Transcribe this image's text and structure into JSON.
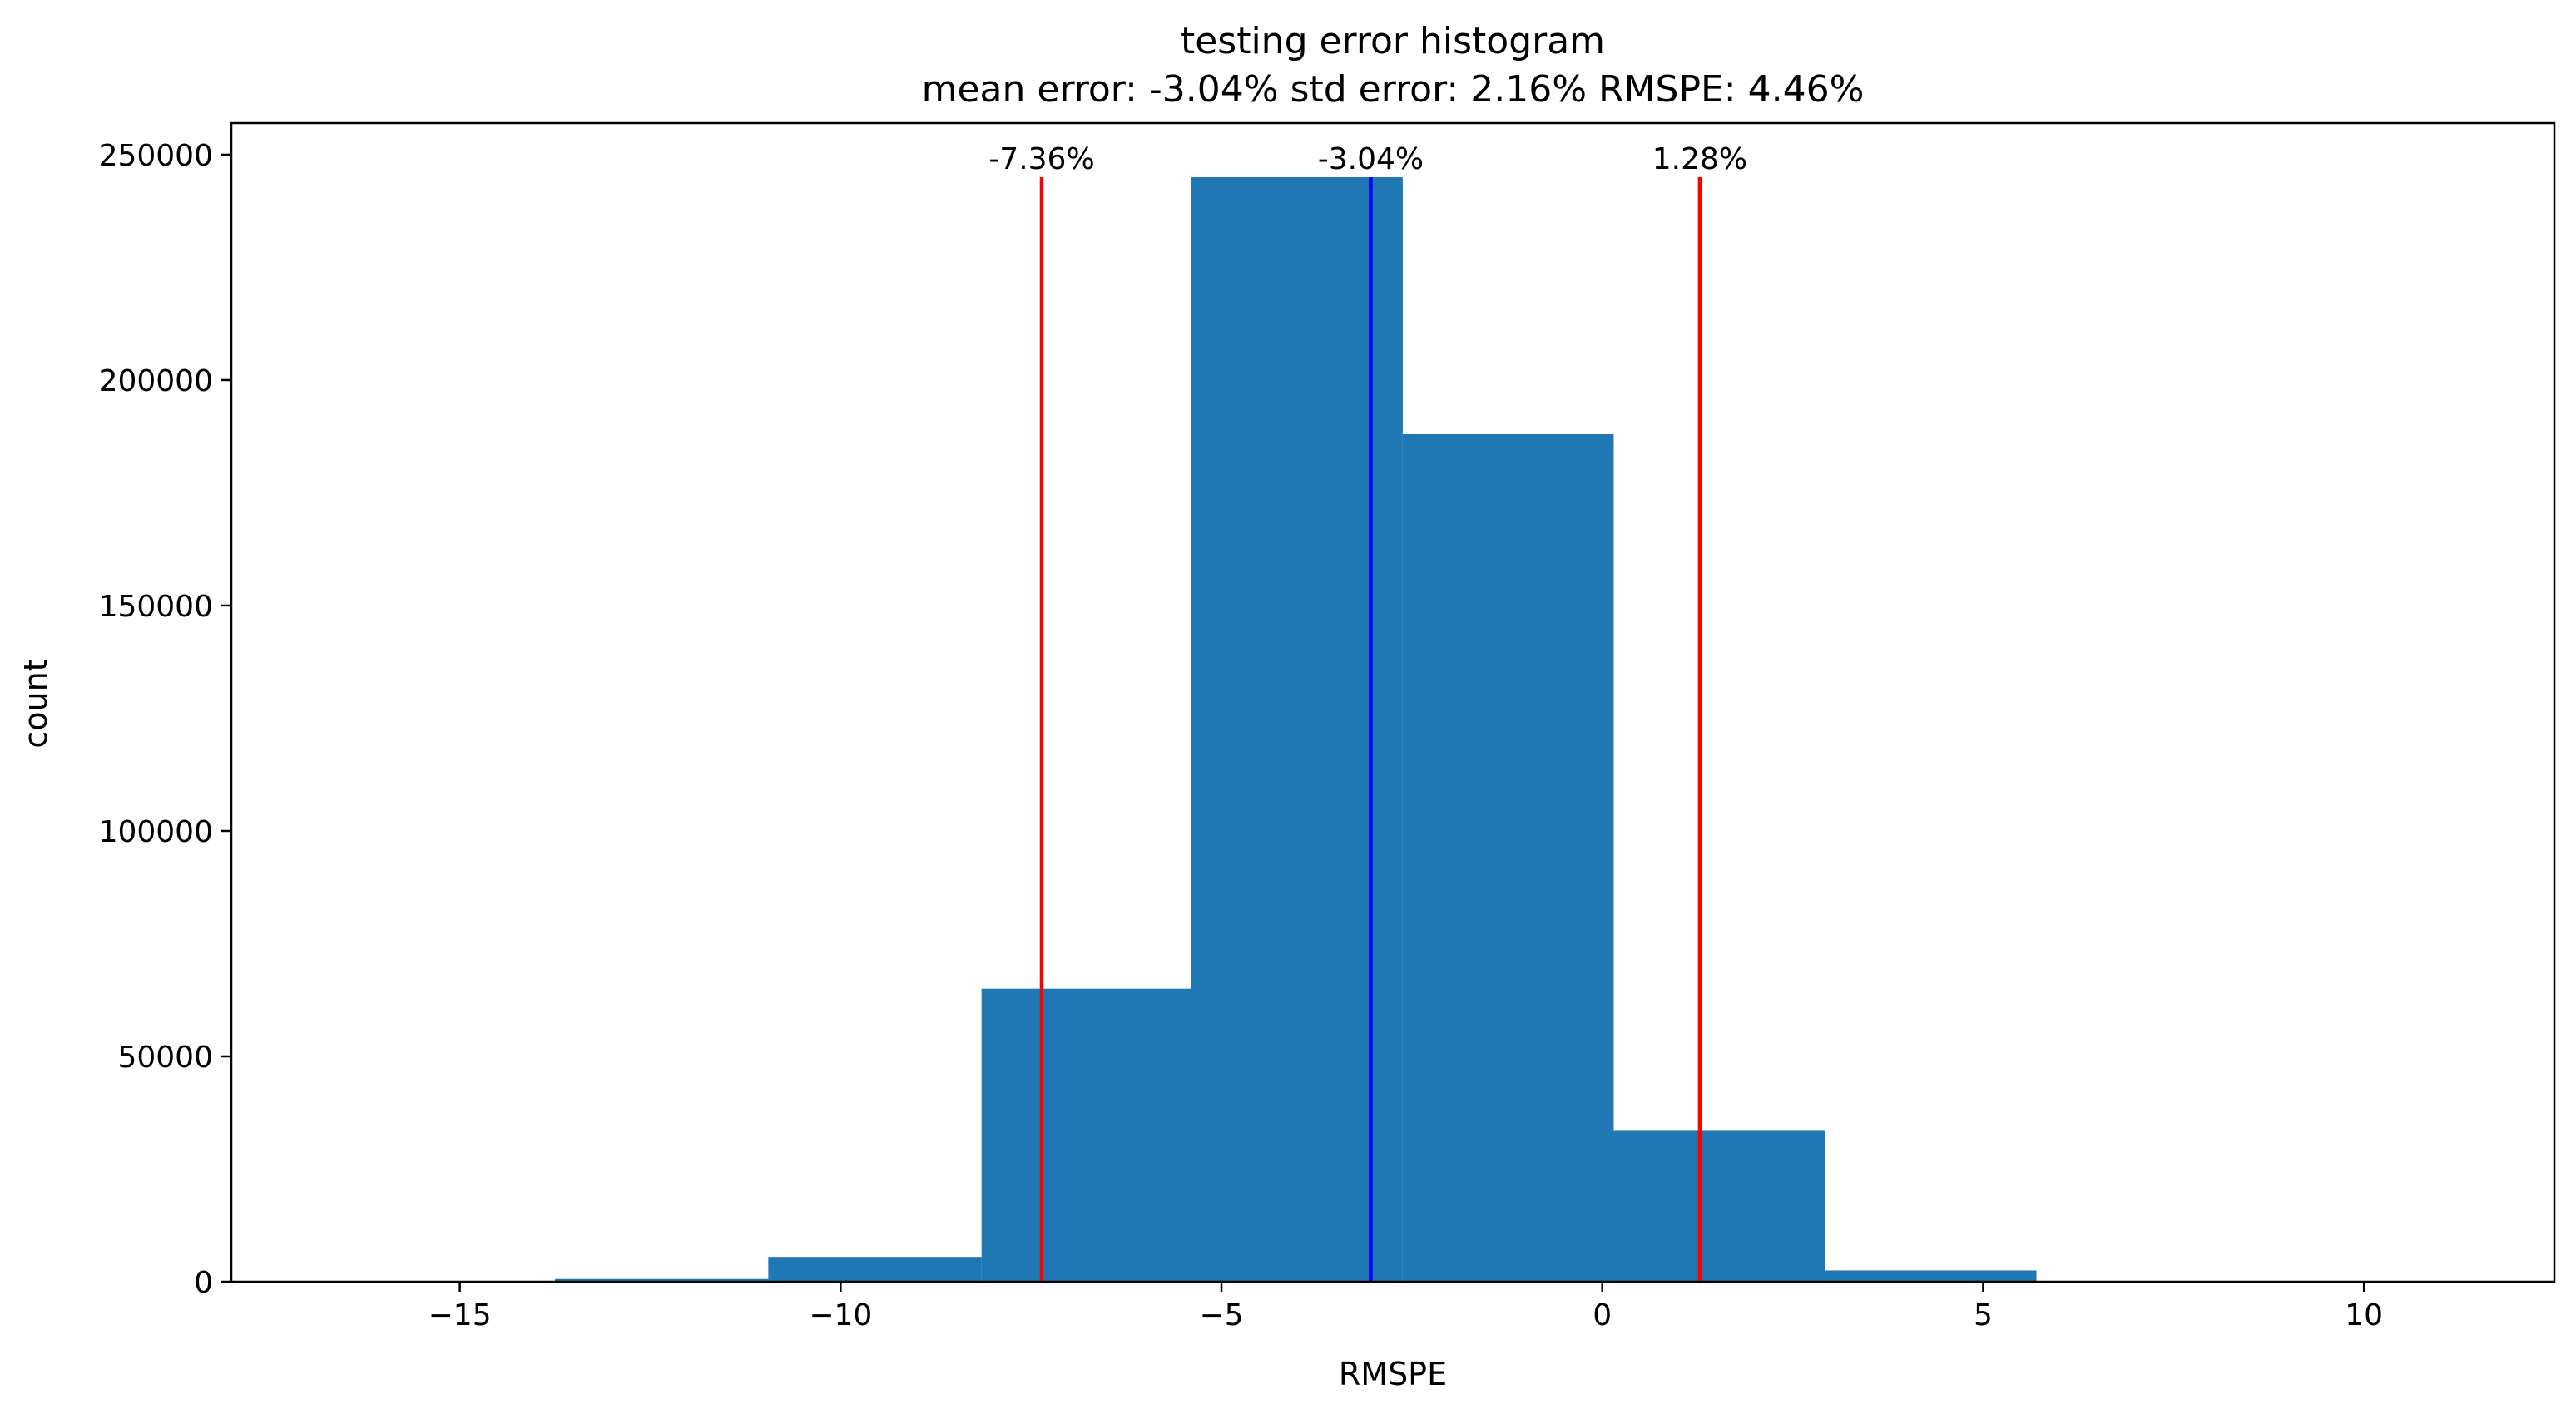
{
  "chart_data": {
    "type": "bar",
    "title": "testing error histogram",
    "subtitle": "mean error: -3.04% std error: 2.16% RMSPE: 4.46%",
    "xlabel": "RMSPE",
    "ylabel": "count",
    "xlim": [
      -18.0,
      12.5
    ],
    "ylim": [
      0,
      257000
    ],
    "xticks": [
      -15,
      -10,
      -5,
      0,
      5,
      10
    ],
    "xtick_labels": [
      "−15",
      "−10",
      "−5",
      "0",
      "5",
      "10"
    ],
    "yticks": [
      0,
      50000,
      100000,
      150000,
      200000,
      250000
    ],
    "ytick_labels": [
      "0",
      "50000",
      "100000",
      "150000",
      "200000",
      "250000"
    ],
    "bar_color": "#1f77b4",
    "bins": [
      {
        "x0": -16.5,
        "x1": -13.75,
        "count": 50
      },
      {
        "x0": -13.75,
        "x1": -10.95,
        "count": 600
      },
      {
        "x0": -10.95,
        "x1": -8.15,
        "count": 5500
      },
      {
        "x0": -8.15,
        "x1": -5.4,
        "count": 65000
      },
      {
        "x0": -5.4,
        "x1": -2.62,
        "count": 245000
      },
      {
        "x0": -2.62,
        "x1": 0.15,
        "count": 188000
      },
      {
        "x0": 0.15,
        "x1": 2.93,
        "count": 33500
      },
      {
        "x0": 2.93,
        "x1": 5.7,
        "count": 2500
      },
      {
        "x0": 5.7,
        "x1": 8.48,
        "count": 150
      },
      {
        "x0": 8.48,
        "x1": 11.25,
        "count": 20
      }
    ],
    "reference_lines": [
      {
        "x": -7.36,
        "label": "-7.36%",
        "color": "#ff0000",
        "top": 245000
      },
      {
        "x": -3.04,
        "label": "-3.04%",
        "color": "#0000ff",
        "top": 245000
      },
      {
        "x": 1.28,
        "label": "1.28%",
        "color": "#ff0000",
        "top": 245000
      }
    ]
  }
}
